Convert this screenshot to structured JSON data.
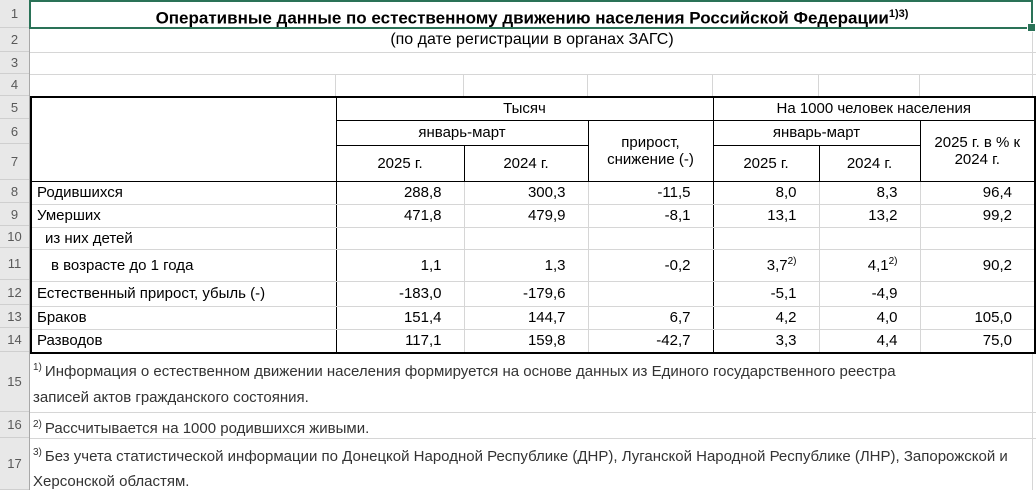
{
  "colors": {
    "accent_green": "#2a7257",
    "gridline": "#d6d6d6",
    "gutter_bg": "#e8e8e8",
    "gutter_text": "#595959"
  },
  "title": {
    "text": "Оперативные данные по естественному движению населения Российской Федерации",
    "sup": "1)3)"
  },
  "subtitle": "(по дате регистрации в органах ЗАГС)",
  "table": {
    "groups": {
      "thousands": "Тысяч",
      "per1000": "На 1000 человек населения"
    },
    "subheaders": {
      "jan_mar_left": "январь-март",
      "jan_mar_right": "январь-март",
      "growth_line1": "прирост,",
      "growth_line2": "снижение (-)",
      "pct_line1": "2025 г. в % к",
      "pct_line2": "2024 г."
    },
    "years": {
      "thousands_2025": "2025 г.",
      "thousands_2024": "2024 г.",
      "per1000_2025": "2025 г.",
      "per1000_2024": "2024 г."
    },
    "rows": [
      {
        "label": "Родившихся",
        "indent": 0,
        "values": [
          "288,8",
          "300,3",
          "-11,5",
          "8,0",
          "8,3",
          "96,4"
        ]
      },
      {
        "label": "Умерших",
        "indent": 0,
        "values": [
          "471,8",
          "479,9",
          "-8,1",
          "13,1",
          "13,2",
          "99,2"
        ]
      },
      {
        "label": "из них детей",
        "indent": 1,
        "values": [
          "",
          "",
          "",
          "",
          "",
          ""
        ]
      },
      {
        "label": "в возрасте до 1 года",
        "indent": 2,
        "values": [
          "1,1",
          "1,3",
          "-0,2",
          {
            "v": "3,7",
            "sup": "2)"
          },
          {
            "v": "4,1",
            "sup": "2)"
          },
          "90,2"
        ]
      },
      {
        "label": "Естественный прирост, убыль (-)",
        "indent": 0,
        "values": [
          "-183,0",
          "-179,6",
          "",
          "-5,1",
          "-4,9",
          ""
        ]
      },
      {
        "label": "Браков",
        "indent": 0,
        "values": [
          "151,4",
          "144,7",
          "6,7",
          "4,2",
          "4,0",
          "105,0"
        ]
      },
      {
        "label": "Разводов",
        "indent": 0,
        "values": [
          "117,1",
          "159,8",
          "-42,7",
          "3,3",
          "4,4",
          "75,0"
        ]
      }
    ]
  },
  "footnotes": [
    {
      "marker": "1)",
      "lines": [
        "Информация о естественном движении населения формируется на основе данных из Единого государственного реестра",
        "записей актов гражданского состояния."
      ]
    },
    {
      "marker": "2)",
      "lines": [
        "Рассчитывается на 1000 родившихся живыми."
      ]
    },
    {
      "marker": "3)",
      "lines": [
        "Без учета статистической информации по Донецкой Народной Республике (ДНР), Луганской Народной Республике (ЛНР), Запорожской и",
        "Херсонской областям."
      ]
    }
  ],
  "gutter": {
    "row_numbers": [
      1,
      2,
      3,
      4,
      5,
      6,
      7,
      8,
      9,
      10,
      11,
      12,
      13,
      14,
      15,
      16,
      17
    ]
  }
}
